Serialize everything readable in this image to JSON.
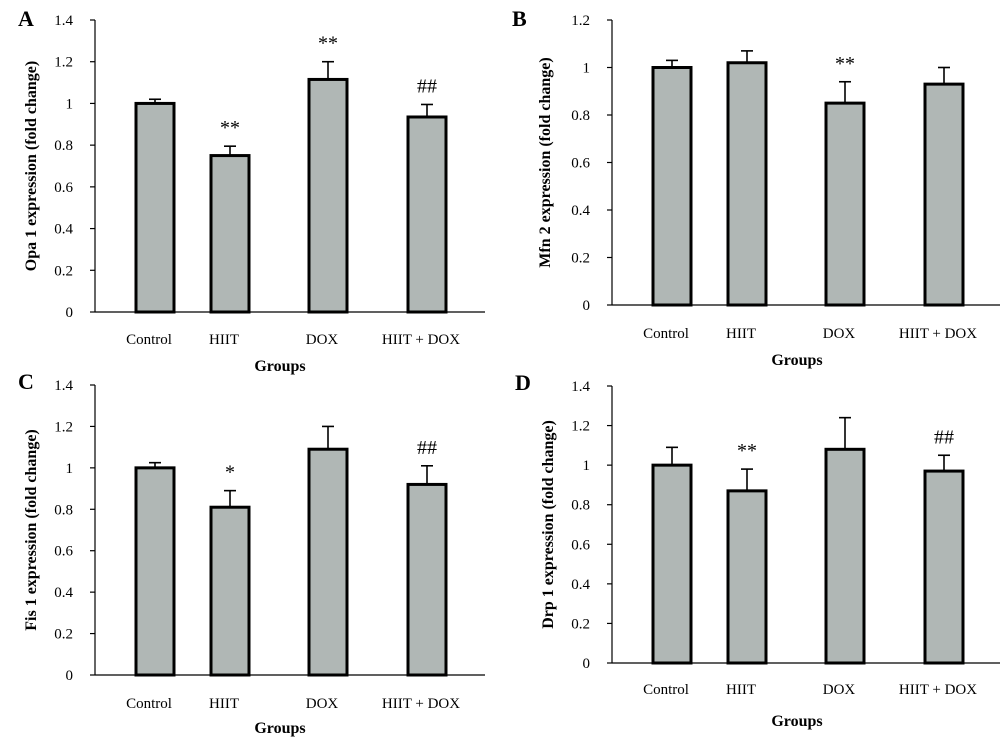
{
  "chart_data": [
    {
      "panel_label": "A",
      "type": "bar",
      "categories": [
        "Control",
        "HIIT",
        "DOX",
        "HIIT + DOX"
      ],
      "values": [
        1.0,
        0.75,
        1.115,
        0.935
      ],
      "errors": [
        0.02,
        0.045,
        0.085,
        0.06
      ],
      "significance": [
        "",
        "**",
        "**",
        "##"
      ],
      "xlabel": "Groups",
      "ylabel": "Opa 1 expression (fold change)",
      "ylim": [
        0,
        1.4
      ],
      "yticks": [
        "0",
        "0.2",
        "0.4",
        "0.6",
        "0.8",
        "1",
        "1.2",
        "1.4"
      ],
      "bar_color": "#b0b7b5",
      "grid": false
    },
    {
      "panel_label": "B",
      "type": "bar",
      "categories": [
        "Control",
        "HIIT",
        "DOX",
        "HIIT + DOX"
      ],
      "values": [
        1.0,
        1.02,
        0.85,
        0.93
      ],
      "errors": [
        0.03,
        0.05,
        0.09,
        0.07
      ],
      "significance": [
        "",
        "",
        "**",
        ""
      ],
      "xlabel": "Groups",
      "ylabel": "Mfn 2 expression (fold change)",
      "ylim": [
        0,
        1.2
      ],
      "yticks": [
        "0",
        "0.2",
        "0.4",
        "0.6",
        "0.8",
        "1",
        "1.2"
      ],
      "bar_color": "#b0b7b5",
      "grid": false
    },
    {
      "panel_label": "C",
      "type": "bar",
      "categories": [
        "Control",
        "HIIT",
        "DOX",
        "HIIT + DOX"
      ],
      "values": [
        1.0,
        0.81,
        1.09,
        0.92
      ],
      "errors": [
        0.025,
        0.08,
        0.11,
        0.09
      ],
      "significance": [
        "",
        "*",
        "",
        "##"
      ],
      "xlabel": "Groups",
      "ylabel": "Fis 1 expression (fold change)",
      "ylim": [
        0,
        1.4
      ],
      "yticks": [
        "0",
        "0.2",
        "0.4",
        "0.6",
        "0.8",
        "1",
        "1.2",
        "1.4"
      ],
      "bar_color": "#b0b7b5",
      "grid": false
    },
    {
      "panel_label": "D",
      "type": "bar",
      "categories": [
        "Control",
        "HIIT",
        "DOX",
        "HIIT + DOX"
      ],
      "values": [
        1.0,
        0.87,
        1.08,
        0.97
      ],
      "errors": [
        0.09,
        0.11,
        0.16,
        0.08
      ],
      "significance": [
        "",
        "**",
        "",
        "##"
      ],
      "xlabel": "Groups",
      "ylabel": "Drp 1 expression (fold change)",
      "ylim": [
        0,
        1.4
      ],
      "yticks": [
        "0",
        "0.2",
        "0.4",
        "0.6",
        "0.8",
        "1",
        "1.2",
        "1.4"
      ],
      "bar_color": "#b0b7b5",
      "grid": false
    }
  ]
}
